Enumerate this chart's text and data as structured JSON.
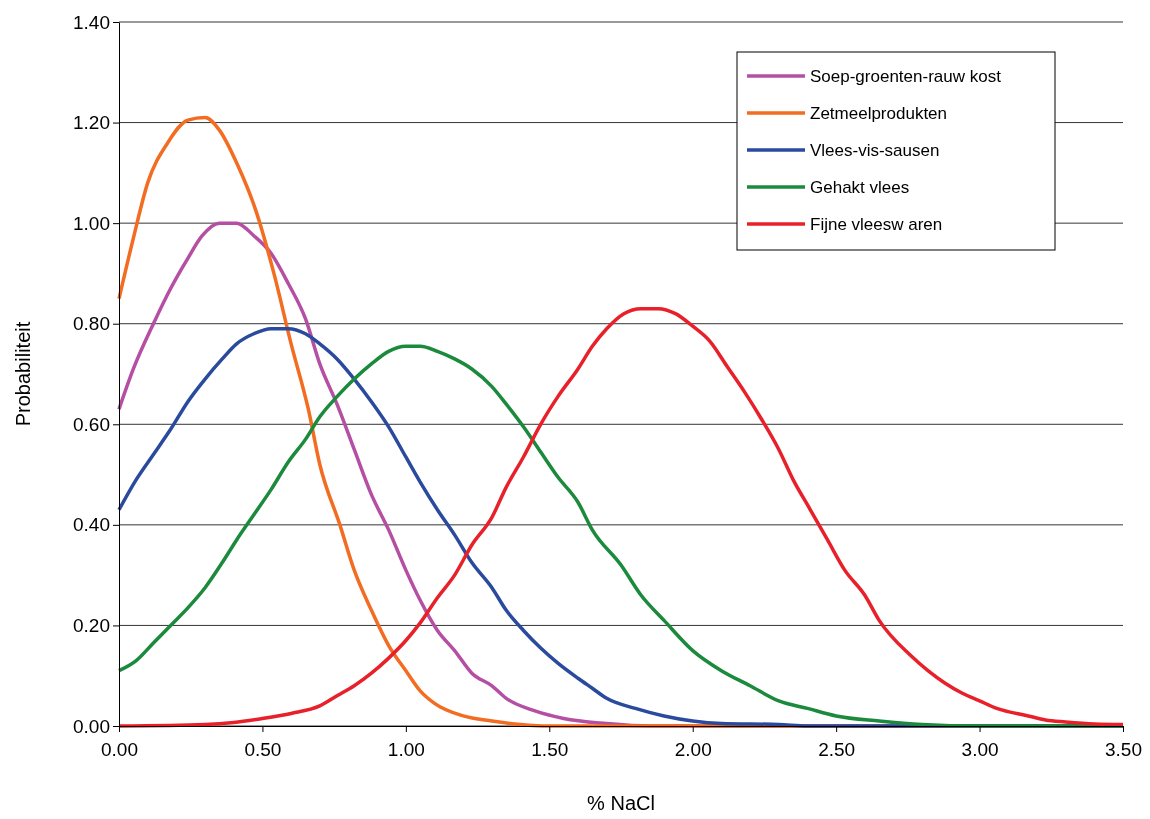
{
  "chart_data": {
    "type": "line",
    "xlabel": "% NaCl",
    "ylabel": "Probabiliteit",
    "xlim": [
      0,
      3.5
    ],
    "xticks": [
      {
        "value": 0,
        "label": "0.00"
      },
      {
        "value": 0.5,
        "label": "0.50"
      },
      {
        "value": 1,
        "label": "1.00"
      },
      {
        "value": 1.5,
        "label": "1.50"
      },
      {
        "value": 2,
        "label": "2.00"
      },
      {
        "value": 2.5,
        "label": "2.50"
      },
      {
        "value": 3,
        "label": "3.00"
      },
      {
        "value": 3.5,
        "label": "3.50"
      }
    ],
    "ylim": [
      0,
      1.4
    ],
    "yticks": [
      {
        "value": 0,
        "label": "0.00"
      },
      {
        "value": 0.2,
        "label": "0.20"
      },
      {
        "value": 0.4,
        "label": "0.40"
      },
      {
        "value": 0.6,
        "label": "0.60"
      },
      {
        "value": 0.8,
        "label": "0.80"
      },
      {
        "value": 1,
        "label": "1.00"
      },
      {
        "value": 1.2,
        "label": "1.20"
      },
      {
        "value": 1.4,
        "label": "1.40"
      }
    ],
    "grid": "y",
    "legend": "top right",
    "marker": "none",
    "line_style": "solid",
    "series": [
      {
        "name": "Soep-groenten-rauw kost",
        "color": "#b54fa4",
        "x": [
          0,
          0.05,
          0.12,
          0.18,
          0.24,
          0.29,
          0.35,
          0.41,
          0.47,
          0.53,
          0.59,
          0.65,
          0.7,
          0.76,
          0.82,
          0.88,
          0.94,
          1.0,
          1.05,
          1.11,
          1.17,
          1.23,
          1.3,
          1.35,
          1.45,
          1.55,
          1.7,
          1.85,
          3.5
        ],
        "values": [
          0.63,
          0.71,
          0.8,
          0.87,
          0.93,
          0.975,
          1.0,
          1.0,
          0.975,
          0.94,
          0.88,
          0.81,
          0.72,
          0.64,
          0.55,
          0.46,
          0.39,
          0.31,
          0.25,
          0.19,
          0.15,
          0.105,
          0.08,
          0.055,
          0.03,
          0.015,
          0.005,
          0,
          0
        ]
      },
      {
        "name": "Zetmeelprodukten",
        "color": "#f26c21",
        "x": [
          0,
          0.05,
          0.1,
          0.17,
          0.24,
          0.3,
          0.35,
          0.41,
          0.48,
          0.54,
          0.6,
          0.66,
          0.7,
          0.77,
          0.82,
          0.88,
          0.94,
          1.0,
          1.05,
          1.1,
          1.2,
          1.3,
          1.4,
          1.5,
          3.5
        ],
        "values": [
          0.85,
          0.97,
          1.08,
          1.16,
          1.205,
          1.21,
          1.185,
          1.12,
          1.02,
          0.9,
          0.76,
          0.63,
          0.52,
          0.4,
          0.31,
          0.23,
          0.16,
          0.11,
          0.07,
          0.045,
          0.02,
          0.01,
          0.003,
          0,
          0
        ]
      },
      {
        "name": "Vlees-vis-sausen",
        "color": "#2a4a9e",
        "x": [
          0,
          0.06,
          0.12,
          0.18,
          0.24,
          0.3,
          0.36,
          0.41,
          0.47,
          0.53,
          0.59,
          0.65,
          0.7,
          0.76,
          0.82,
          0.88,
          0.94,
          1.0,
          1.05,
          1.11,
          1.17,
          1.23,
          1.3,
          1.35,
          1.41,
          1.47,
          1.53,
          1.6,
          1.65,
          1.7,
          1.8,
          1.9,
          2.0,
          2.1,
          2.3,
          2.4,
          3.5
        ],
        "values": [
          0.43,
          0.49,
          0.54,
          0.59,
          0.645,
          0.69,
          0.73,
          0.76,
          0.78,
          0.79,
          0.79,
          0.78,
          0.76,
          0.73,
          0.69,
          0.645,
          0.595,
          0.535,
          0.485,
          0.43,
          0.38,
          0.325,
          0.275,
          0.23,
          0.19,
          0.155,
          0.125,
          0.095,
          0.075,
          0.055,
          0.035,
          0.02,
          0.01,
          0.005,
          0.003,
          0,
          0
        ]
      },
      {
        "name": "Gehakt vlees",
        "color": "#1b8a3c",
        "x": [
          0,
          0.06,
          0.12,
          0.18,
          0.24,
          0.3,
          0.36,
          0.41,
          0.47,
          0.53,
          0.59,
          0.65,
          0.7,
          0.76,
          0.82,
          0.88,
          0.94,
          1.0,
          1.05,
          1.11,
          1.17,
          1.23,
          1.3,
          1.35,
          1.41,
          1.47,
          1.53,
          1.6,
          1.65,
          1.75,
          1.82,
          1.9,
          2.0,
          2.1,
          2.2,
          2.3,
          2.4,
          2.5,
          2.65,
          2.8,
          3.0,
          3.5
        ],
        "values": [
          0.11,
          0.13,
          0.165,
          0.2,
          0.235,
          0.275,
          0.325,
          0.37,
          0.42,
          0.47,
          0.525,
          0.57,
          0.615,
          0.655,
          0.69,
          0.72,
          0.745,
          0.755,
          0.755,
          0.745,
          0.73,
          0.71,
          0.675,
          0.64,
          0.595,
          0.545,
          0.495,
          0.445,
          0.39,
          0.32,
          0.26,
          0.21,
          0.15,
          0.11,
          0.08,
          0.05,
          0.035,
          0.02,
          0.01,
          0.003,
          0,
          0
        ]
      },
      {
        "name": "Fijne vleesw aren",
        "color": "#e8202a",
        "x": [
          0,
          0.3,
          0.4,
          0.5,
          0.6,
          0.7,
          0.76,
          0.82,
          0.88,
          0.94,
          1.0,
          1.05,
          1.11,
          1.17,
          1.23,
          1.3,
          1.35,
          1.41,
          1.47,
          1.53,
          1.6,
          1.65,
          1.7,
          1.76,
          1.82,
          1.88,
          1.94,
          2.0,
          2.06,
          2.12,
          2.18,
          2.24,
          2.3,
          2.35,
          2.41,
          2.47,
          2.53,
          2.6,
          2.65,
          2.76,
          2.82,
          2.88,
          2.94,
          3.0,
          3.06,
          3.17,
          3.23,
          3.3,
          3.4,
          3.5
        ],
        "values": [
          0,
          0.003,
          0.007,
          0.015,
          0.025,
          0.04,
          0.06,
          0.08,
          0.105,
          0.135,
          0.17,
          0.205,
          0.255,
          0.3,
          0.36,
          0.415,
          0.475,
          0.535,
          0.6,
          0.655,
          0.71,
          0.755,
          0.79,
          0.82,
          0.83,
          0.83,
          0.82,
          0.795,
          0.765,
          0.715,
          0.665,
          0.61,
          0.55,
          0.49,
          0.43,
          0.37,
          0.31,
          0.26,
          0.21,
          0.14,
          0.11,
          0.085,
          0.065,
          0.05,
          0.035,
          0.02,
          0.012,
          0.008,
          0.004,
          0.003
        ]
      }
    ]
  }
}
